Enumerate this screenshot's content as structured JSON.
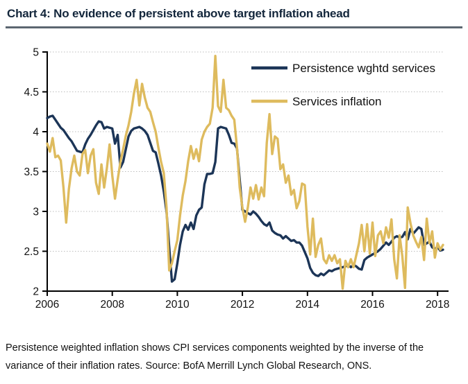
{
  "colors": {
    "navy": "#1c3557",
    "gold": "#debb5e",
    "title_text": "#13263b",
    "rule": "#5b6670",
    "grid": "#bdbdbd",
    "axis": "#000000",
    "tick_text": "#111111",
    "background": "#ffffff"
  },
  "footnote": {
    "line1": "Persistence weighted inflation shows CPI services components weighted by the inverse of the",
    "line2": "variance of their inflation rates. Source: BofA Merrill Lynch Global Research, ONS."
  },
  "chart_data": {
    "type": "line",
    "title": "Chart 4: No evidence of persistent above target inflation ahead",
    "frequency": "monthly",
    "x_start": {
      "year": 2006,
      "month": 1
    },
    "x_end": {
      "year": 2018,
      "month": 3
    },
    "x_ticks": [
      "2006",
      "2008",
      "2010",
      "2012",
      "2014",
      "2016",
      "2018"
    ],
    "y_ticks": [
      2,
      2.5,
      3,
      3.5,
      4,
      4.5,
      5
    ],
    "ylim": [
      2,
      5
    ],
    "grid": "horizontal-dotted",
    "legend_position": "top-right-inside",
    "series": [
      {
        "key": "persistence-wghtd-services",
        "name": "Persistence wghtd services",
        "color": "#1c3557",
        "values": [
          4.17,
          4.19,
          4.2,
          4.15,
          4.1,
          4.05,
          4.02,
          3.97,
          3.92,
          3.88,
          3.82,
          3.76,
          3.75,
          3.74,
          3.84,
          3.91,
          3.96,
          4.02,
          4.08,
          4.13,
          4.12,
          4.04,
          4.06,
          4.05,
          4.04,
          3.85,
          3.96,
          3.55,
          3.62,
          3.78,
          3.94,
          4.01,
          4.04,
          4.05,
          4.06,
          4.04,
          4.01,
          3.96,
          3.86,
          3.76,
          3.74,
          3.6,
          3.45,
          3.25,
          3.0,
          2.55,
          2.12,
          2.15,
          2.35,
          2.58,
          2.75,
          2.83,
          2.77,
          2.86,
          2.78,
          2.95,
          3.02,
          3.05,
          3.34,
          3.47,
          3.47,
          3.48,
          3.62,
          4.04,
          4.06,
          4.05,
          4.04,
          3.96,
          3.86,
          3.85,
          3.79,
          3.4,
          3.02,
          3.0,
          2.98,
          2.96,
          3.0,
          2.97,
          2.93,
          2.88,
          2.84,
          2.82,
          2.86,
          2.76,
          2.73,
          2.71,
          2.7,
          2.66,
          2.69,
          2.66,
          2.63,
          2.64,
          2.61,
          2.61,
          2.57,
          2.49,
          2.41,
          2.29,
          2.23,
          2.2,
          2.19,
          2.22,
          2.2,
          2.23,
          2.26,
          2.25,
          2.27,
          2.28,
          2.29,
          2.3,
          2.31,
          2.33,
          2.3,
          2.33,
          2.31,
          2.28,
          2.27,
          2.39,
          2.42,
          2.44,
          2.46,
          2.48,
          2.5,
          2.53,
          2.57,
          2.61,
          2.58,
          2.62,
          2.67,
          2.69,
          2.67,
          2.68,
          2.74,
          2.65,
          2.78,
          2.72,
          2.76,
          2.8,
          2.78,
          2.58,
          2.6,
          2.62,
          2.55,
          2.53,
          2.55,
          2.51,
          2.52
        ]
      },
      {
        "key": "services-inflation",
        "name": "Services inflation",
        "color": "#debb5e",
        "values": [
          3.85,
          3.75,
          3.92,
          3.68,
          3.7,
          3.64,
          3.3,
          2.86,
          3.28,
          3.54,
          3.7,
          3.5,
          3.45,
          3.72,
          3.77,
          3.48,
          3.7,
          3.78,
          3.36,
          3.22,
          3.59,
          3.3,
          3.54,
          3.84,
          3.45,
          3.16,
          3.4,
          3.62,
          3.78,
          3.95,
          4.08,
          4.25,
          4.48,
          4.65,
          4.33,
          4.6,
          4.43,
          4.3,
          4.25,
          4.12,
          4.0,
          3.8,
          3.62,
          3.48,
          3.05,
          2.26,
          2.35,
          2.5,
          2.64,
          2.95,
          3.2,
          3.38,
          3.63,
          3.82,
          3.66,
          3.78,
          3.63,
          3.9,
          4.0,
          4.06,
          4.1,
          4.3,
          4.95,
          4.32,
          4.25,
          4.65,
          4.3,
          4.27,
          4.2,
          4.15,
          3.8,
          3.3,
          3.05,
          2.87,
          3.05,
          3.3,
          3.16,
          3.33,
          3.15,
          3.3,
          3.19,
          3.86,
          4.22,
          3.72,
          3.94,
          3.91,
          3.53,
          3.59,
          3.36,
          3.45,
          3.21,
          3.27,
          3.04,
          3.13,
          3.35,
          3.33,
          2.81,
          2.46,
          2.91,
          2.43,
          2.58,
          2.66,
          2.4,
          2.35,
          2.45,
          2.38,
          2.45,
          2.35,
          2.4,
          2.03,
          2.38,
          2.3,
          2.4,
          2.3,
          2.45,
          2.6,
          2.83,
          2.5,
          2.84,
          2.47,
          2.86,
          2.44,
          2.7,
          2.75,
          2.6,
          2.8,
          2.67,
          2.9,
          2.4,
          2.16,
          2.7,
          2.44,
          2.04,
          3.05,
          2.85,
          2.7,
          2.62,
          2.55,
          2.68,
          2.39,
          2.91,
          2.6,
          2.75,
          2.42,
          2.6,
          2.52,
          2.58
        ]
      }
    ]
  }
}
